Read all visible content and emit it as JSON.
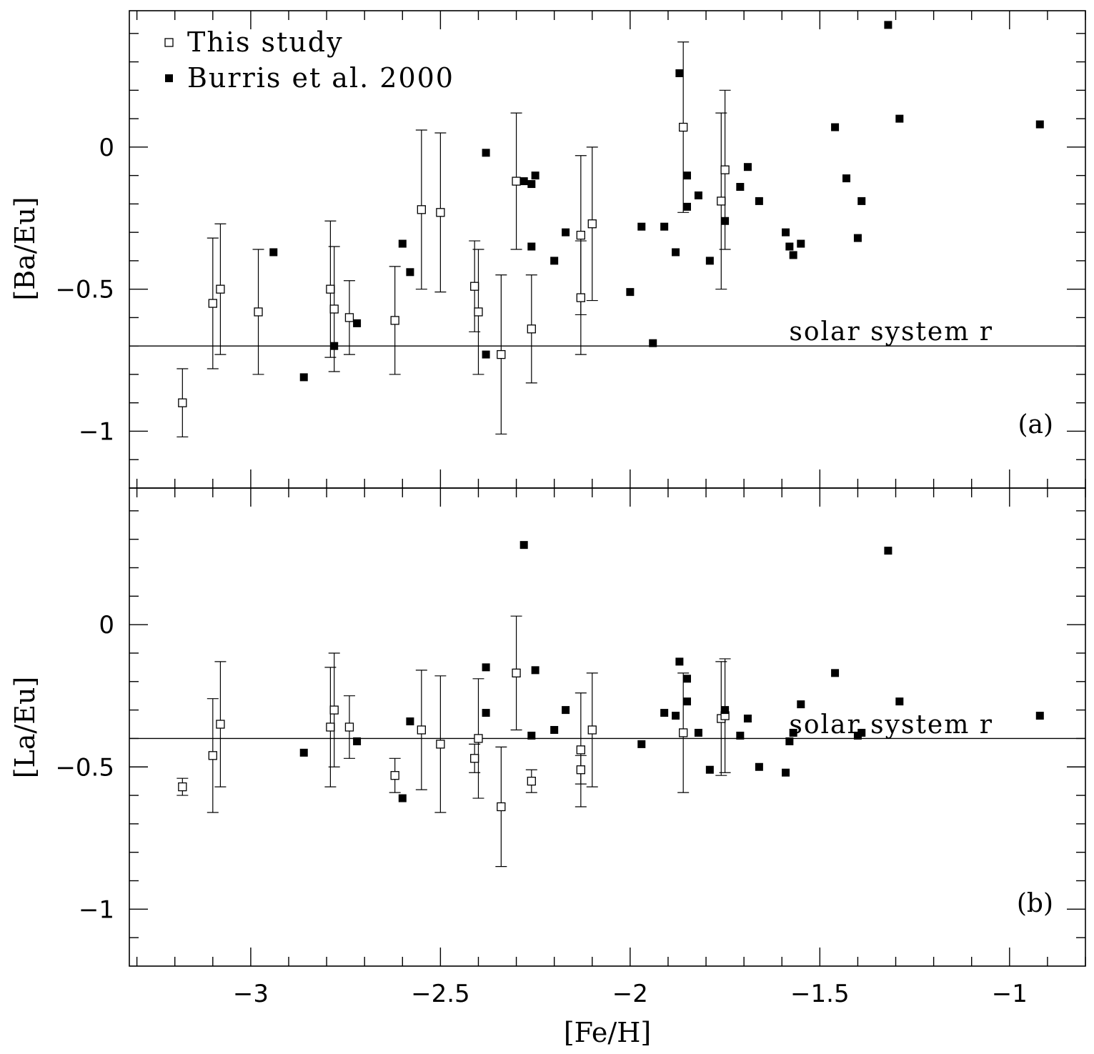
{
  "chart_data": [
    {
      "type": "scatter",
      "panel_label": "(a)",
      "ylabel": "[Ba/Eu]",
      "xlabel": "",
      "xlim": [
        -3.32,
        -0.8
      ],
      "ylim": [
        -1.2,
        0.48
      ],
      "xticks": [
        -3,
        -2.5,
        -2,
        -1.5,
        -1
      ],
      "xtick_labels": [
        "−3",
        "−2.5",
        "−2",
        "−1.5",
        "−1"
      ],
      "yticks": [
        0,
        -0.5,
        -1
      ],
      "ytick_labels": [
        "0",
        "−0.5",
        "−1"
      ],
      "reference": {
        "y": -0.7,
        "label": "solar system r"
      },
      "legend": {
        "position": "top-left",
        "entries": [
          {
            "label": "This study",
            "marker": "open-square"
          },
          {
            "label": "Burris et al. 2000",
            "marker": "filled-square"
          }
        ]
      },
      "series": [
        {
          "name": "This study",
          "marker": "open-square",
          "points": [
            {
              "x": -3.18,
              "y": -0.9,
              "lo": -1.02,
              "hi": -0.78
            },
            {
              "x": -3.1,
              "y": -0.55,
              "lo": -0.78,
              "hi": -0.32
            },
            {
              "x": -3.08,
              "y": -0.5,
              "lo": -0.73,
              "hi": -0.27
            },
            {
              "x": -2.98,
              "y": -0.58,
              "lo": -0.8,
              "hi": -0.36
            },
            {
              "x": -2.79,
              "y": -0.5,
              "lo": -0.74,
              "hi": -0.26
            },
            {
              "x": -2.78,
              "y": -0.57,
              "lo": -0.79,
              "hi": -0.35
            },
            {
              "x": -2.74,
              "y": -0.6,
              "lo": -0.73,
              "hi": -0.47
            },
            {
              "x": -2.62,
              "y": -0.61,
              "lo": -0.8,
              "hi": -0.42
            },
            {
              "x": -2.55,
              "y": -0.22,
              "lo": -0.5,
              "hi": 0.06
            },
            {
              "x": -2.5,
              "y": -0.23,
              "lo": -0.51,
              "hi": 0.05
            },
            {
              "x": -2.41,
              "y": -0.49,
              "lo": -0.65,
              "hi": -0.33
            },
            {
              "x": -2.4,
              "y": -0.58,
              "lo": -0.8,
              "hi": -0.36
            },
            {
              "x": -2.34,
              "y": -0.73,
              "lo": -1.01,
              "hi": -0.45
            },
            {
              "x": -2.3,
              "y": -0.12,
              "lo": -0.36,
              "hi": 0.12
            },
            {
              "x": -2.26,
              "y": -0.64,
              "lo": -0.83,
              "hi": -0.45
            },
            {
              "x": -2.13,
              "y": -0.31,
              "lo": -0.59,
              "hi": -0.03
            },
            {
              "x": -2.13,
              "y": -0.53,
              "lo": -0.73,
              "hi": -0.33
            },
            {
              "x": -2.1,
              "y": -0.27,
              "lo": -0.54,
              "hi": 0.0
            },
            {
              "x": -1.86,
              "y": 0.07,
              "lo": -0.23,
              "hi": 0.37
            },
            {
              "x": -1.76,
              "y": -0.19,
              "lo": -0.5,
              "hi": 0.12
            },
            {
              "x": -1.75,
              "y": -0.08,
              "lo": -0.36,
              "hi": 0.2
            }
          ]
        },
        {
          "name": "Burris et al. 2000",
          "marker": "filled-square",
          "points": [
            {
              "x": -2.94,
              "y": -0.37
            },
            {
              "x": -2.86,
              "y": -0.81
            },
            {
              "x": -2.78,
              "y": -0.7
            },
            {
              "x": -2.72,
              "y": -0.62
            },
            {
              "x": -2.6,
              "y": -0.34
            },
            {
              "x": -2.58,
              "y": -0.44
            },
            {
              "x": -2.38,
              "y": -0.02
            },
            {
              "x": -2.38,
              "y": -0.73
            },
            {
              "x": -2.28,
              "y": -0.12
            },
            {
              "x": -2.26,
              "y": -0.13
            },
            {
              "x": -2.26,
              "y": -0.35
            },
            {
              "x": -2.25,
              "y": -0.1
            },
            {
              "x": -2.2,
              "y": -0.4
            },
            {
              "x": -2.17,
              "y": -0.3
            },
            {
              "x": -2.0,
              "y": -0.51
            },
            {
              "x": -1.97,
              "y": -0.28
            },
            {
              "x": -1.94,
              "y": -0.69
            },
            {
              "x": -1.91,
              "y": -0.28
            },
            {
              "x": -1.88,
              "y": -0.37
            },
            {
              "x": -1.87,
              "y": 0.26
            },
            {
              "x": -1.85,
              "y": -0.1
            },
            {
              "x": -1.85,
              "y": -0.21
            },
            {
              "x": -1.82,
              "y": -0.17
            },
            {
              "x": -1.79,
              "y": -0.4
            },
            {
              "x": -1.75,
              "y": -0.26
            },
            {
              "x": -1.71,
              "y": -0.14
            },
            {
              "x": -1.69,
              "y": -0.07
            },
            {
              "x": -1.66,
              "y": -0.19
            },
            {
              "x": -1.59,
              "y": -0.3
            },
            {
              "x": -1.58,
              "y": -0.35
            },
            {
              "x": -1.57,
              "y": -0.38
            },
            {
              "x": -1.55,
              "y": -0.34
            },
            {
              "x": -1.46,
              "y": 0.07
            },
            {
              "x": -1.43,
              "y": -0.11
            },
            {
              "x": -1.4,
              "y": -0.32
            },
            {
              "x": -1.39,
              "y": -0.19
            },
            {
              "x": -1.32,
              "y": 0.43
            },
            {
              "x": -1.29,
              "y": 0.1
            },
            {
              "x": -0.92,
              "y": 0.08
            }
          ]
        }
      ]
    },
    {
      "type": "scatter",
      "panel_label": "(b)",
      "ylabel": "[La/Eu]",
      "xlabel": "[Fe/H]",
      "xlim": [
        -3.32,
        -0.8
      ],
      "ylim": [
        -1.2,
        0.48
      ],
      "xticks": [
        -3,
        -2.5,
        -2,
        -1.5,
        -1
      ],
      "xtick_labels": [
        "−3",
        "−2.5",
        "−2",
        "−1.5",
        "−1"
      ],
      "yticks": [
        0,
        -0.5,
        -1
      ],
      "ytick_labels": [
        "0",
        "−0.5",
        "−1"
      ],
      "reference": {
        "y": -0.4,
        "label": "solar system r"
      },
      "series": [
        {
          "name": "This study",
          "marker": "open-square",
          "points": [
            {
              "x": -3.18,
              "y": -0.57,
              "lo": -0.6,
              "hi": -0.54
            },
            {
              "x": -3.1,
              "y": -0.46,
              "lo": -0.66,
              "hi": -0.26
            },
            {
              "x": -3.08,
              "y": -0.35,
              "lo": -0.57,
              "hi": -0.13
            },
            {
              "x": -2.79,
              "y": -0.36,
              "lo": -0.57,
              "hi": -0.15
            },
            {
              "x": -2.78,
              "y": -0.3,
              "lo": -0.5,
              "hi": -0.1
            },
            {
              "x": -2.74,
              "y": -0.36,
              "lo": -0.47,
              "hi": -0.25
            },
            {
              "x": -2.62,
              "y": -0.53,
              "lo": -0.59,
              "hi": -0.47
            },
            {
              "x": -2.55,
              "y": -0.37,
              "lo": -0.58,
              "hi": -0.16
            },
            {
              "x": -2.5,
              "y": -0.42,
              "lo": -0.66,
              "hi": -0.18
            },
            {
              "x": -2.41,
              "y": -0.47,
              "lo": -0.52,
              "hi": -0.42
            },
            {
              "x": -2.4,
              "y": -0.4,
              "lo": -0.61,
              "hi": -0.19
            },
            {
              "x": -2.34,
              "y": -0.64,
              "lo": -0.85,
              "hi": -0.43
            },
            {
              "x": -2.3,
              "y": -0.17,
              "lo": -0.37,
              "hi": 0.03
            },
            {
              "x": -2.26,
              "y": -0.55,
              "lo": -0.59,
              "hi": -0.51
            },
            {
              "x": -2.13,
              "y": -0.44,
              "lo": -0.64,
              "hi": -0.24
            },
            {
              "x": -2.13,
              "y": -0.51,
              "lo": -0.56,
              "hi": -0.46
            },
            {
              "x": -2.1,
              "y": -0.37,
              "lo": -0.57,
              "hi": -0.17
            },
            {
              "x": -1.86,
              "y": -0.38,
              "lo": -0.59,
              "hi": -0.17
            },
            {
              "x": -1.76,
              "y": -0.33,
              "lo": -0.53,
              "hi": -0.13
            },
            {
              "x": -1.75,
              "y": -0.32,
              "lo": -0.52,
              "hi": -0.12
            }
          ]
        },
        {
          "name": "Burris et al. 2000",
          "marker": "filled-square",
          "points": [
            {
              "x": -2.86,
              "y": -0.45
            },
            {
              "x": -2.72,
              "y": -0.41
            },
            {
              "x": -2.6,
              "y": -0.61
            },
            {
              "x": -2.58,
              "y": -0.34
            },
            {
              "x": -2.38,
              "y": -0.15
            },
            {
              "x": -2.38,
              "y": -0.31
            },
            {
              "x": -2.28,
              "y": 0.28
            },
            {
              "x": -2.26,
              "y": -0.39
            },
            {
              "x": -2.25,
              "y": -0.16
            },
            {
              "x": -2.2,
              "y": -0.37
            },
            {
              "x": -2.17,
              "y": -0.3
            },
            {
              "x": -1.97,
              "y": -0.42
            },
            {
              "x": -1.91,
              "y": -0.31
            },
            {
              "x": -1.88,
              "y": -0.32
            },
            {
              "x": -1.87,
              "y": -0.13
            },
            {
              "x": -1.85,
              "y": -0.19
            },
            {
              "x": -1.85,
              "y": -0.27
            },
            {
              "x": -1.82,
              "y": -0.38
            },
            {
              "x": -1.79,
              "y": -0.51
            },
            {
              "x": -1.75,
              "y": -0.3
            },
            {
              "x": -1.71,
              "y": -0.39
            },
            {
              "x": -1.69,
              "y": -0.33
            },
            {
              "x": -1.66,
              "y": -0.5
            },
            {
              "x": -1.59,
              "y": -0.52
            },
            {
              "x": -1.58,
              "y": -0.41
            },
            {
              "x": -1.57,
              "y": -0.38
            },
            {
              "x": -1.55,
              "y": -0.28
            },
            {
              "x": -1.46,
              "y": -0.17
            },
            {
              "x": -1.4,
              "y": -0.39
            },
            {
              "x": -1.39,
              "y": -0.38
            },
            {
              "x": -1.32,
              "y": 0.26
            },
            {
              "x": -1.29,
              "y": -0.27
            },
            {
              "x": -0.92,
              "y": -0.32
            }
          ]
        }
      ]
    }
  ]
}
